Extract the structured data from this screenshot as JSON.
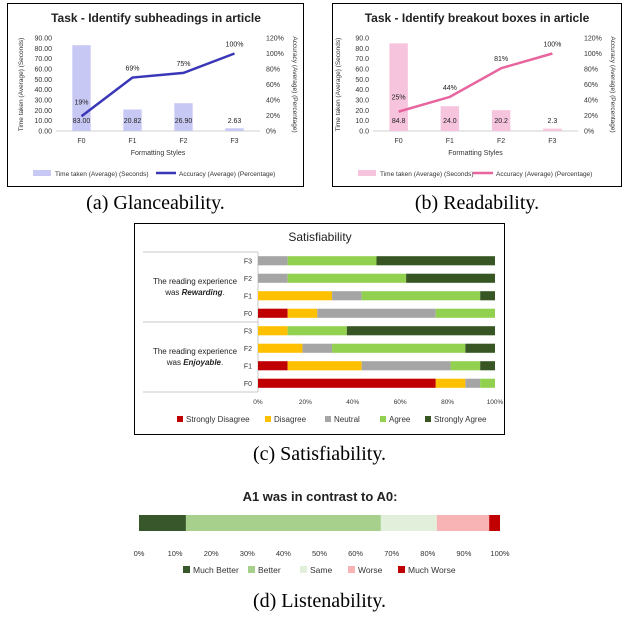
{
  "captions": {
    "a": "(a) Glanceability.",
    "b": "(b) Readability.",
    "c": "(c) Satisfiability.",
    "d": "(d) Listenability."
  },
  "chart_data": [
    {
      "id": "glanceability",
      "type": "bar",
      "title": "Task - Identify subheadings in article",
      "xlabel": "Formatting Styles",
      "ylabel": "Time taken (Average) (Seconds)",
      "ylabel_right": "Accuracy (Average) (Percentage)",
      "categories": [
        "F0",
        "F1",
        "F2",
        "F3"
      ],
      "ylim": [
        0,
        90
      ],
      "yticks": [
        "0.00",
        "10.00",
        "20.00",
        "30.00",
        "40.00",
        "50.00",
        "60.00",
        "70.00",
        "80.00",
        "90.00"
      ],
      "ylim_right": [
        0,
        120
      ],
      "yticks_right": [
        "0%",
        "20%",
        "40%",
        "60%",
        "80%",
        "100%",
        "120%"
      ],
      "series": [
        {
          "name": "Time taken (Average) (Seconds)",
          "kind": "bar",
          "color": "#c8c8f4",
          "values": [
            83.0,
            20.82,
            26.9,
            2.63
          ],
          "labels": [
            "83.00",
            "20.82",
            "26.90",
            "2.63"
          ]
        },
        {
          "name": "Accuracy (Average) (Percentage)",
          "kind": "line",
          "color": "#3a36b8",
          "values": [
            19,
            69,
            75,
            100
          ],
          "labels": [
            "19%",
            "69%",
            "75%",
            "100%"
          ]
        }
      ]
    },
    {
      "id": "readability",
      "type": "bar",
      "title": "Task - Identify breakout boxes in article",
      "xlabel": "Formatting Styles",
      "ylabel": "Time taken (Average) (Seconds)",
      "ylabel_right": "Accuracy (Average) (Percentage)",
      "categories": [
        "F0",
        "F1",
        "F2",
        "F3"
      ],
      "ylim": [
        0,
        90
      ],
      "yticks": [
        "0.0",
        "10.0",
        "20.0",
        "30.0",
        "40.0",
        "50.0",
        "60.0",
        "70.0",
        "80.0",
        "90.0"
      ],
      "ylim_right": [
        0,
        120
      ],
      "yticks_right": [
        "0%",
        "20%",
        "40%",
        "60%",
        "80%",
        "100%",
        "120%"
      ],
      "series": [
        {
          "name": "Time taken (Average) (Seconds)",
          "kind": "bar",
          "color": "#f7c4dd",
          "values": [
            84.8,
            24.0,
            20.2,
            2.3
          ],
          "labels": [
            "84.8",
            "24.0",
            "20.2",
            "2.3"
          ]
        },
        {
          "name": "Accuracy (Average) (Percentage)",
          "kind": "line",
          "color": "#e8649e",
          "values": [
            25,
            44,
            81,
            100
          ],
          "labels": [
            "25%",
            "44%",
            "81%",
            "100%"
          ]
        }
      ]
    },
    {
      "id": "satisfiability",
      "type": "bar",
      "stacked": true,
      "orientation": "horizontal",
      "title": "Satisfiability",
      "xlim": [
        0,
        100
      ],
      "xticks": [
        "0%",
        "20%",
        "40%",
        "60%",
        "80%",
        "100%"
      ],
      "groups": [
        {
          "label_pre": "The reading experience was ",
          "label_em": "Rewarding",
          "label_post": ".",
          "rows": [
            "F3",
            "F2",
            "F1",
            "F0"
          ]
        },
        {
          "label_pre": "The reading experience was ",
          "label_em": "Enjoyable",
          "label_post": ".",
          "rows": [
            "F3",
            "F2",
            "F1",
            "F0"
          ]
        }
      ],
      "series": [
        {
          "name": "Strongly Disagree",
          "color": "#c00000",
          "values": [
            0,
            0,
            0,
            12.5,
            0,
            0,
            12.5,
            75
          ]
        },
        {
          "name": "Disagree",
          "color": "#ffc000",
          "values": [
            0,
            0,
            31.25,
            12.5,
            12.5,
            18.75,
            31.25,
            12.5
          ]
        },
        {
          "name": "Neutral",
          "color": "#a5a5a5",
          "values": [
            12.5,
            12.5,
            12.5,
            50,
            0,
            12.5,
            37.5,
            6.25
          ]
        },
        {
          "name": "Agree",
          "color": "#92d050",
          "values": [
            37.5,
            50,
            50,
            25,
            25,
            56.25,
            12.5,
            6.25
          ]
        },
        {
          "name": "Strongly Agree",
          "color": "#375623",
          "values": [
            50,
            37.5,
            6.25,
            0,
            62.5,
            12.5,
            6.25,
            0
          ]
        }
      ],
      "legend": "bottom"
    },
    {
      "id": "listenability",
      "type": "bar",
      "stacked": true,
      "orientation": "horizontal",
      "title": "A1 was in contrast to A0:",
      "xlim": [
        0,
        100
      ],
      "xticks": [
        "0%",
        "10%",
        "20%",
        "30%",
        "40%",
        "50%",
        "60%",
        "70%",
        "80%",
        "90%",
        "100%"
      ],
      "series": [
        {
          "name": "Much Better",
          "color": "#38572a",
          "value": 13
        },
        {
          "name": "Better",
          "color": "#a8d08d",
          "value": 54
        },
        {
          "name": "Same",
          "color": "#e2efda",
          "value": 15.5
        },
        {
          "name": "Worse",
          "color": "#f8b4b4",
          "value": 14.5
        },
        {
          "name": "Much Worse",
          "color": "#c00000",
          "value": 3
        }
      ],
      "legend": "bottom"
    }
  ]
}
